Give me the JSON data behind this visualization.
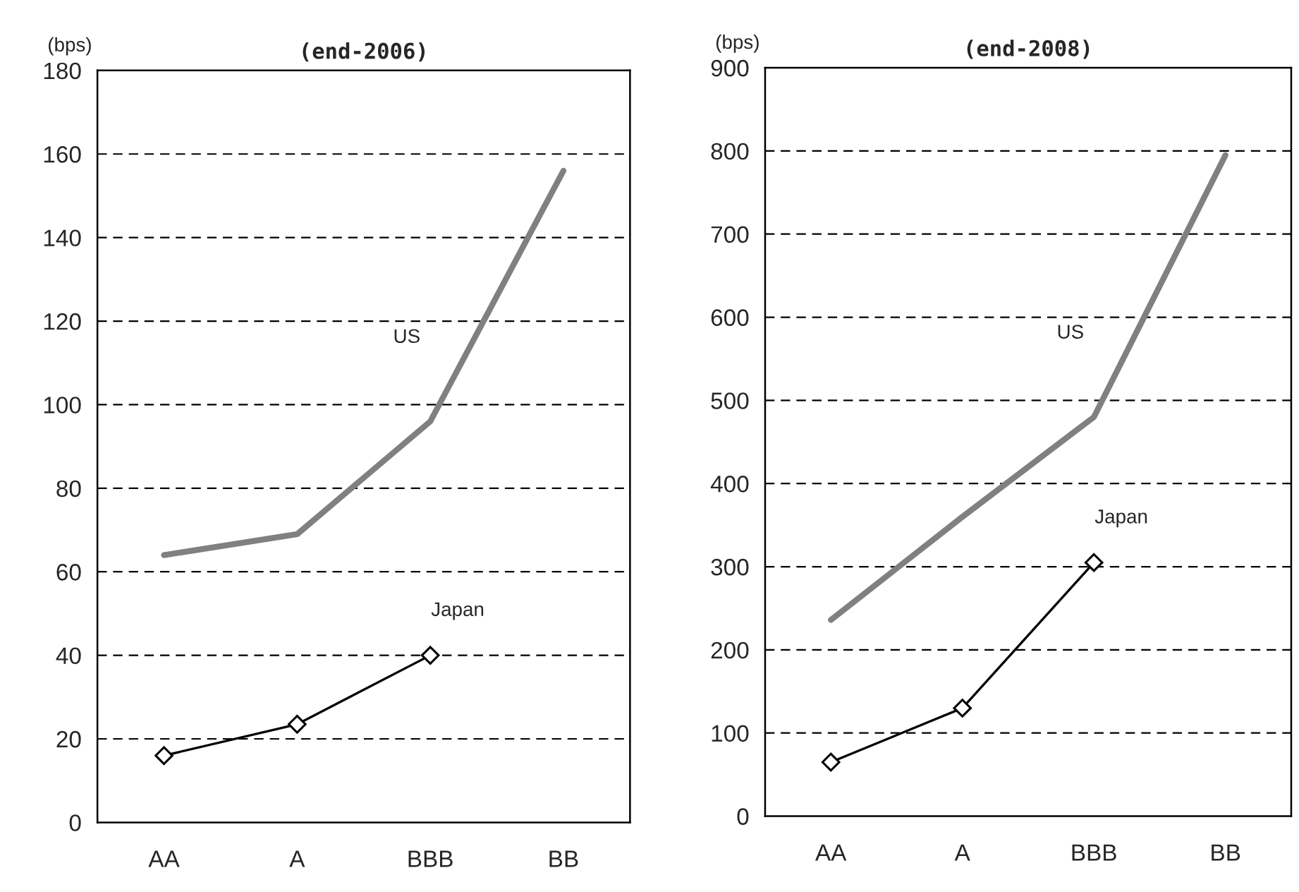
{
  "chart_data": [
    {
      "type": "line",
      "title": "(end-2006)",
      "ylabel": "(bps)",
      "categories": [
        "AA",
        "A",
        "BBB",
        "BB"
      ],
      "ylim": [
        0,
        180
      ],
      "yticks": [
        0,
        20,
        40,
        60,
        80,
        100,
        120,
        140,
        160,
        180
      ],
      "grid": "y",
      "legend": false,
      "series": [
        {
          "name": "US",
          "color": "#808080",
          "values": [
            64,
            69,
            96,
            156
          ],
          "marker": "none"
        },
        {
          "name": "Japan",
          "color": "#000000",
          "values": [
            16,
            23.5,
            40,
            null
          ],
          "marker": "diamond"
        }
      ]
    },
    {
      "type": "line",
      "title": "(end-2008)",
      "ylabel": "(bps)",
      "categories": [
        "AA",
        "A",
        "BBB",
        "BB"
      ],
      "ylim": [
        0,
        900
      ],
      "yticks": [
        0,
        100,
        200,
        300,
        400,
        500,
        600,
        700,
        800,
        900
      ],
      "grid": "y",
      "legend": false,
      "series": [
        {
          "name": "US",
          "color": "#808080",
          "values": [
            236,
            360,
            480,
            795
          ],
          "marker": "none"
        },
        {
          "name": "Japan",
          "color": "#000000",
          "values": [
            65,
            130,
            305,
            null
          ],
          "marker": "diamond"
        }
      ]
    }
  ]
}
